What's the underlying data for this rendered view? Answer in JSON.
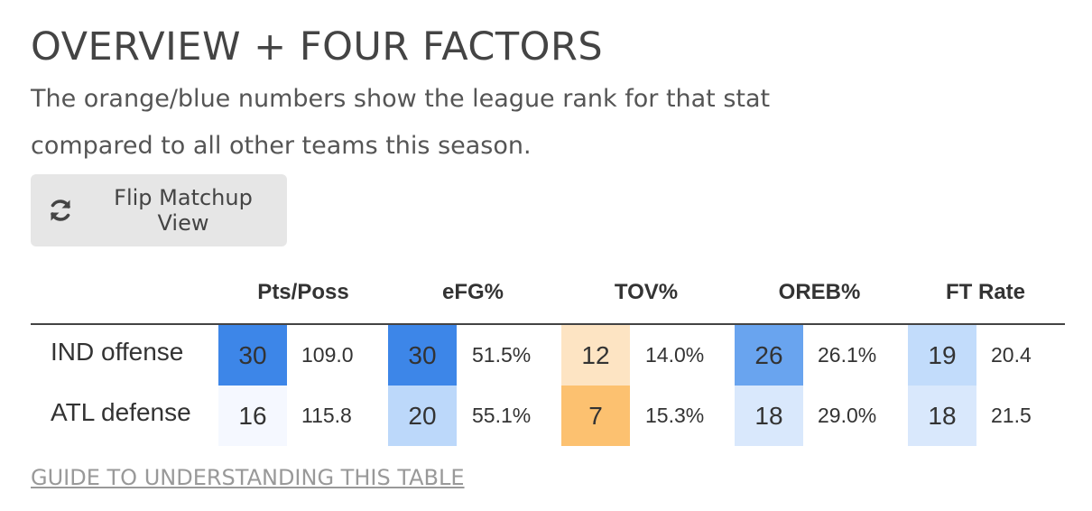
{
  "title": "OVERVIEW + FOUR FACTORS",
  "subtitle": "The orange/blue numbers show the league rank for that stat compared to all other teams this season.",
  "flip_button": {
    "label": "Flip Matchup View",
    "icon": "refresh-icon"
  },
  "columns": [
    "Pts/Poss",
    "eFG%",
    "TOV%",
    "OREB%",
    "FT Rate"
  ],
  "rows": [
    {
      "label": "IND offense",
      "cells": [
        {
          "rank": "30",
          "value": "109.0",
          "color": "#3d86e8"
        },
        {
          "rank": "30",
          "value": "51.5%",
          "color": "#3d86e8"
        },
        {
          "rank": "12",
          "value": "14.0%",
          "color": "#fde4c3"
        },
        {
          "rank": "26",
          "value": "26.1%",
          "color": "#69a4ef"
        },
        {
          "rank": "19",
          "value": "20.4",
          "color": "#c2dcfb"
        }
      ]
    },
    {
      "label": "ATL defense",
      "cells": [
        {
          "rank": "16",
          "value": "115.8",
          "color": "#f5f8ff"
        },
        {
          "rank": "20",
          "value": "55.1%",
          "color": "#bcd8fa"
        },
        {
          "rank": "7",
          "value": "15.3%",
          "color": "#fcc170"
        },
        {
          "rank": "18",
          "value": "29.0%",
          "color": "#d9e8fc"
        },
        {
          "rank": "18",
          "value": "21.5",
          "color": "#d9e8fc"
        }
      ]
    }
  ],
  "guide_link": "GUIDE TO UNDERSTANDING THIS TABLE"
}
